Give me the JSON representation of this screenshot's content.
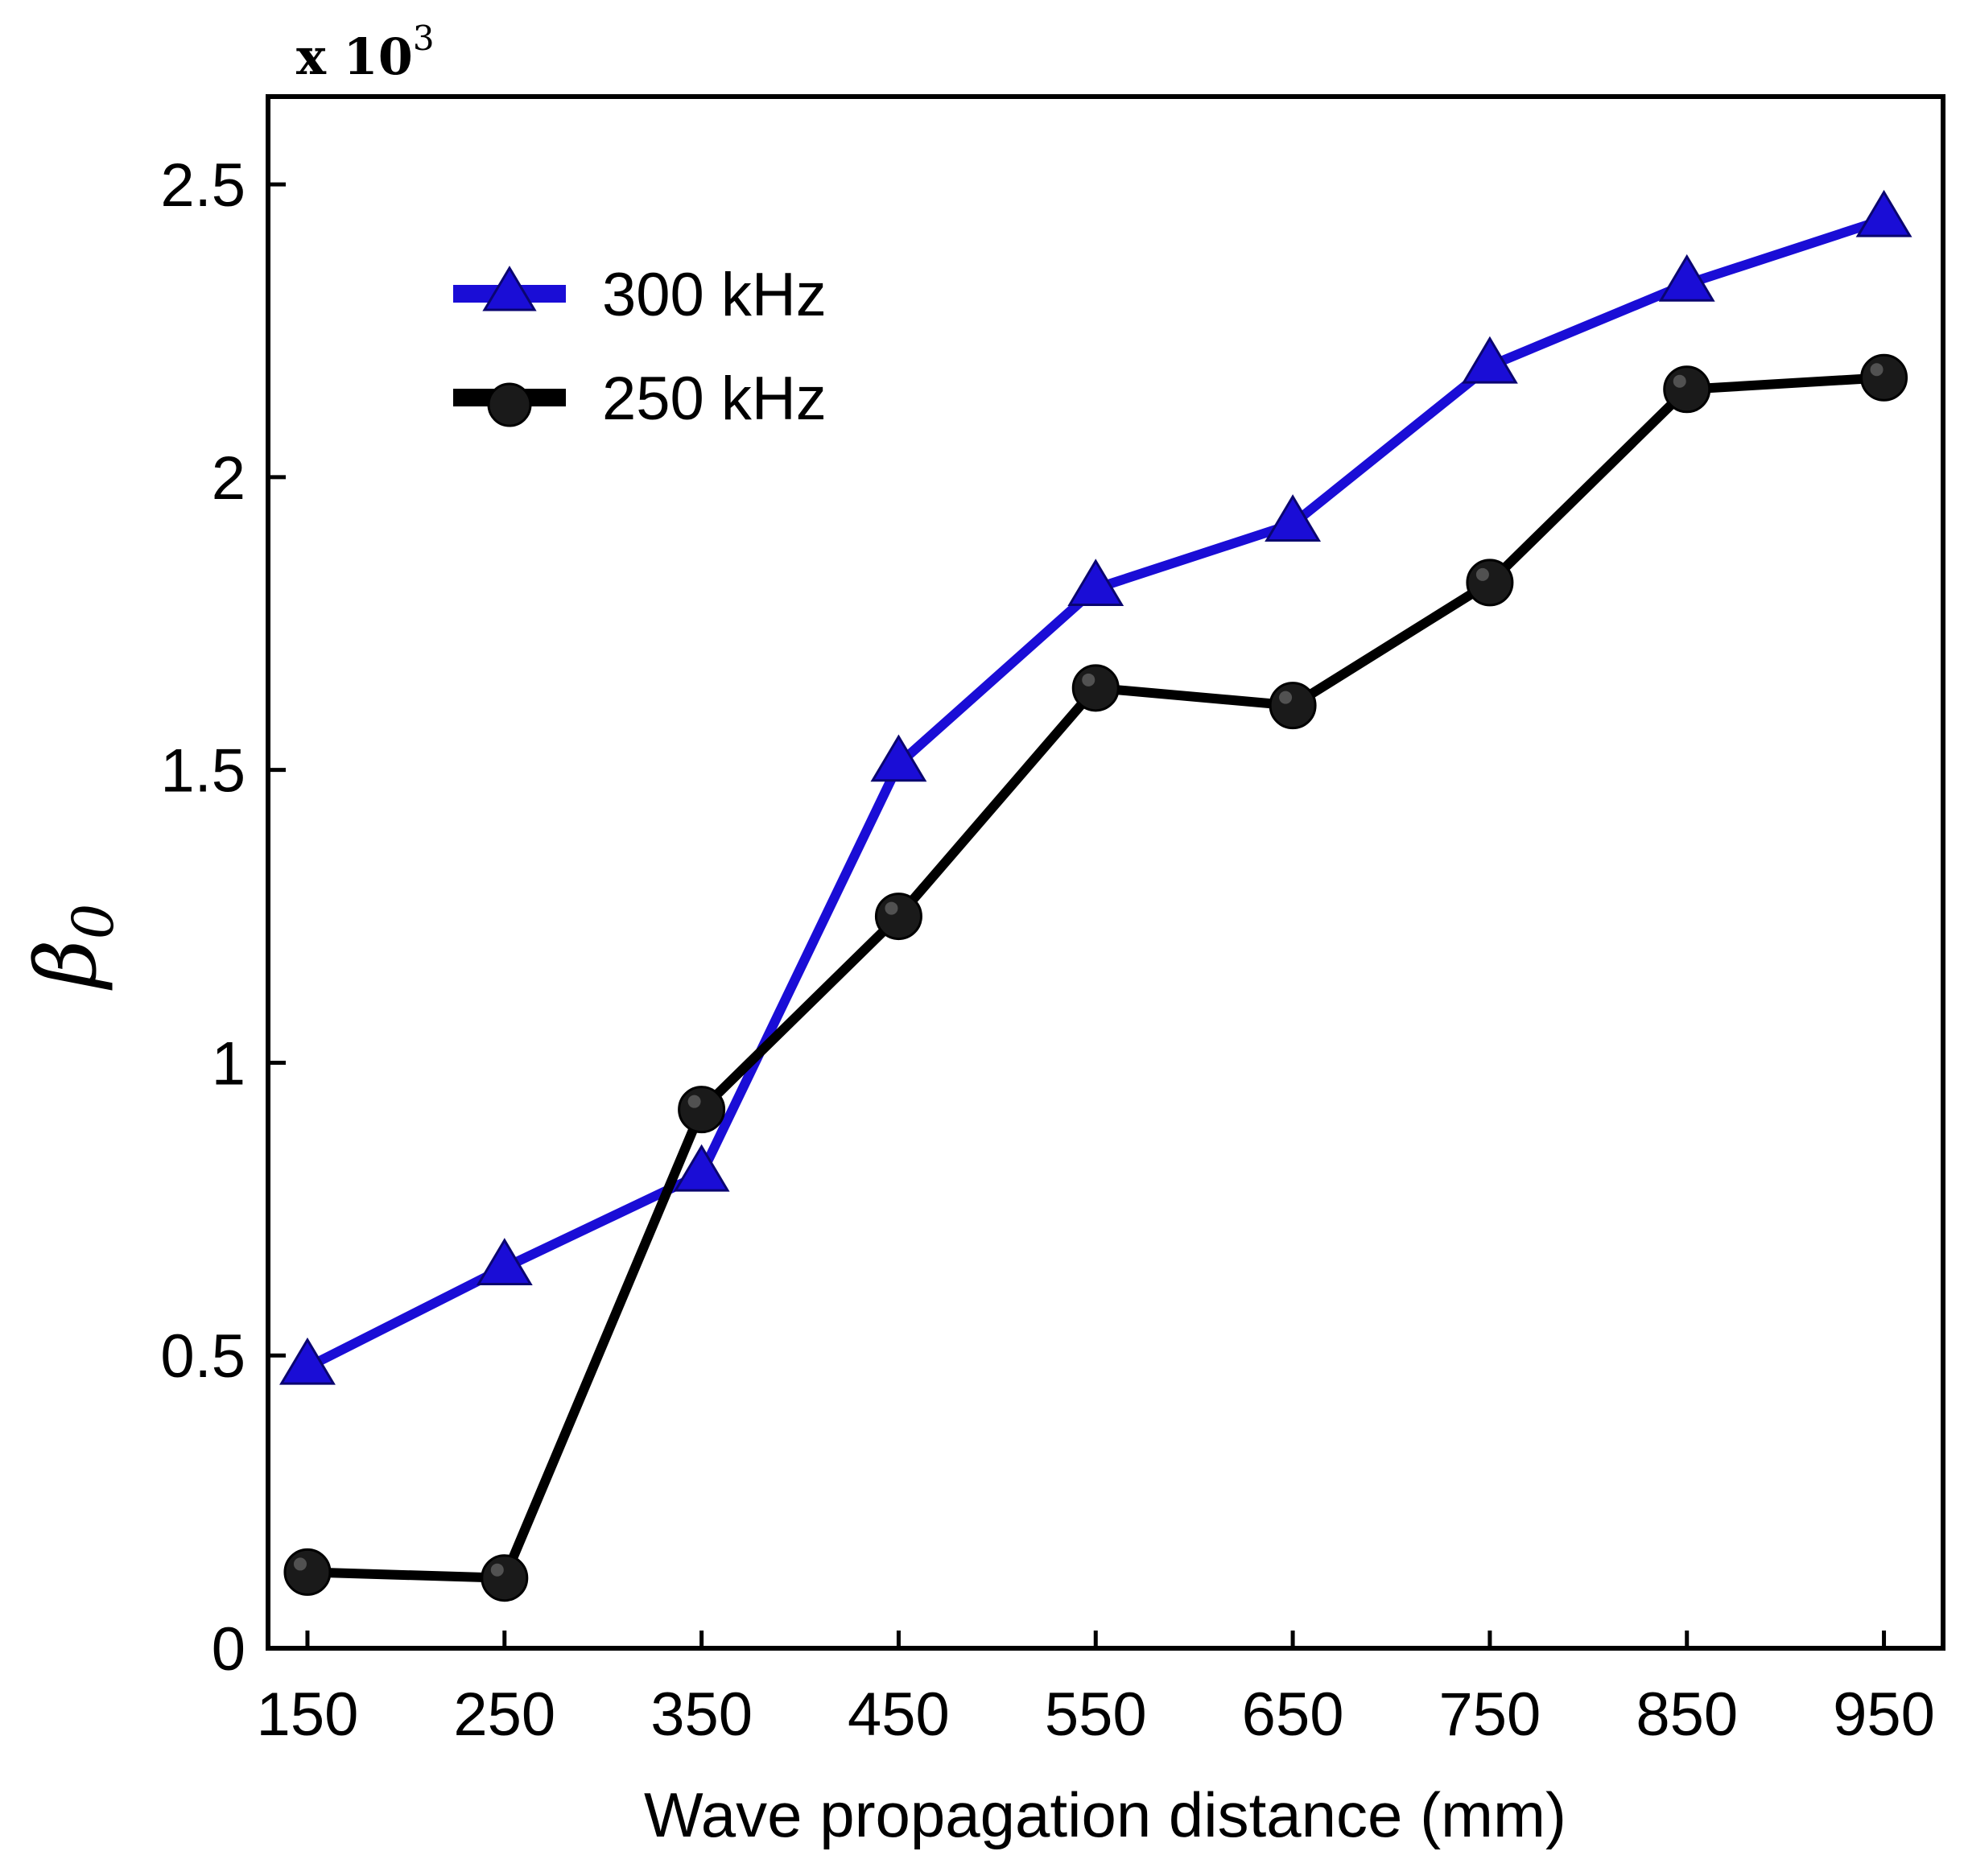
{
  "chart_data": {
    "type": "line",
    "title": "",
    "xlabel": "Wave propagation distance (mm)",
    "ylabel": "β0",
    "ylabel_symbol": "β",
    "ylabel_subscript": "0",
    "y_multiplier": "x 10",
    "y_multiplier_exponent": "3",
    "x": [
      150,
      250,
      350,
      450,
      550,
      650,
      750,
      850,
      950
    ],
    "x_ticks": [
      "150",
      "250",
      "350",
      "450",
      "550",
      "650",
      "750",
      "850",
      "950"
    ],
    "y_ticks": [
      "0",
      "0.5",
      "1",
      "1.5",
      "2",
      "2.5"
    ],
    "y_tick_values": [
      0,
      0.5,
      1,
      1.5,
      2,
      2.5
    ],
    "xlim": [
      130,
      980
    ],
    "ylim": [
      0,
      2.65
    ],
    "grid": false,
    "legend_position": "top-left",
    "series": [
      {
        "name": "300 kHz",
        "color": "#1a0dd6",
        "marker": "triangle",
        "values": [
          0.48,
          0.65,
          0.81,
          1.51,
          1.81,
          1.92,
          2.19,
          2.33,
          2.44
        ]
      },
      {
        "name": "250 kHz",
        "color": "#000000",
        "marker": "circle",
        "values": [
          0.13,
          0.12,
          0.92,
          1.25,
          1.64,
          1.61,
          1.82,
          2.15,
          2.17
        ]
      }
    ]
  }
}
